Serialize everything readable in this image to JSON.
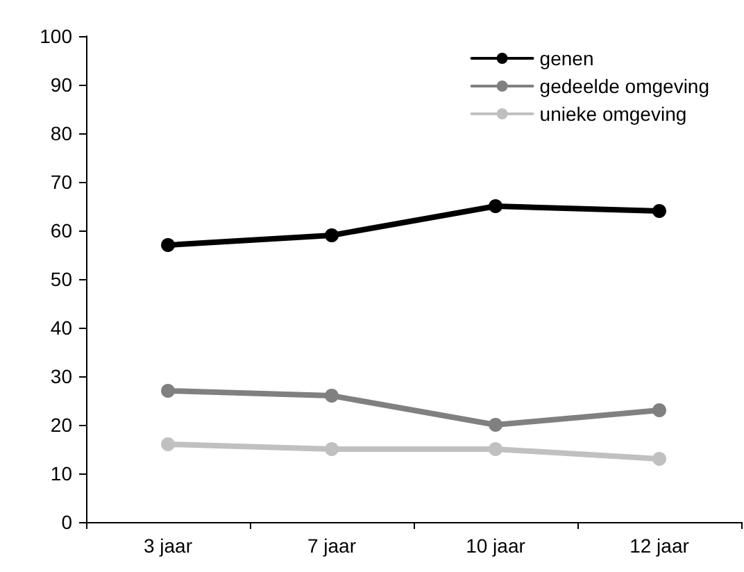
{
  "chart_data": {
    "type": "line",
    "categories": [
      "3 jaar",
      "7 jaar",
      "10 jaar",
      "12 jaar"
    ],
    "series": [
      {
        "name": "genen",
        "color": "#000000",
        "values": [
          57,
          59,
          65,
          64
        ]
      },
      {
        "name": "gedeelde omgeving",
        "color": "#808080",
        "values": [
          27,
          26,
          20,
          23
        ]
      },
      {
        "name": "unieke omgeving",
        "color": "#c0c0c0",
        "values": [
          16,
          15,
          15,
          13
        ]
      }
    ],
    "ylim": [
      0,
      100
    ],
    "yticks": [
      0,
      10,
      20,
      30,
      40,
      50,
      60,
      70,
      80,
      90,
      100
    ],
    "grid": false,
    "legend": "top right",
    "marker": "circle",
    "line_style": "solid"
  }
}
